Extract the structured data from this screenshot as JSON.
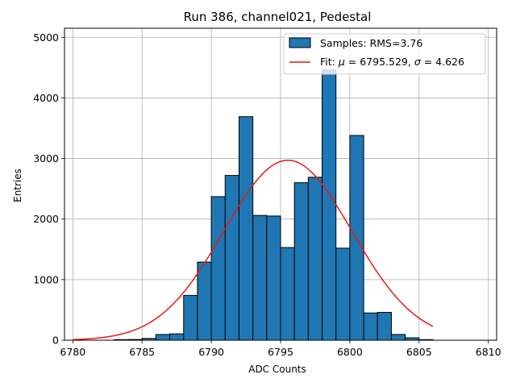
{
  "chart_data": {
    "type": "bar",
    "title": "Run 386, channel021, Pedestal",
    "xlabel": "ADC Counts",
    "ylabel": "Entries",
    "xlim": [
      6779.4,
      6810.6
    ],
    "ylim": [
      0,
      5150
    ],
    "xticks": [
      6780,
      6785,
      6790,
      6795,
      6800,
      6805,
      6810
    ],
    "yticks": [
      0,
      1000,
      2000,
      3000,
      4000,
      5000
    ],
    "grid": true,
    "legend_position": "top-right",
    "colors": {
      "bars": "#1f77b4",
      "edge": "#000000",
      "fit": "#e41a1c"
    },
    "bins": {
      "start": 6783,
      "width": 1,
      "counts": [
        10,
        12,
        30,
        95,
        105,
        740,
        1290,
        2370,
        2720,
        3690,
        2060,
        2050,
        1530,
        2600,
        2690,
        4460,
        1520,
        3380,
        450,
        460,
        95,
        40,
        10
      ]
    },
    "fit": {
      "mu": 6795.529,
      "sigma": 4.626,
      "amplitude": 2970,
      "x_start": 6780,
      "x_end": 6806
    },
    "legend": {
      "samples_label": "Samples: RMS=3.76",
      "fit_prefix": "Fit: ",
      "mu_symbol": "μ",
      "fit_mu_text": " = 6795.529, ",
      "sigma_symbol": "σ",
      "fit_sigma_text": " = 4.626"
    }
  }
}
